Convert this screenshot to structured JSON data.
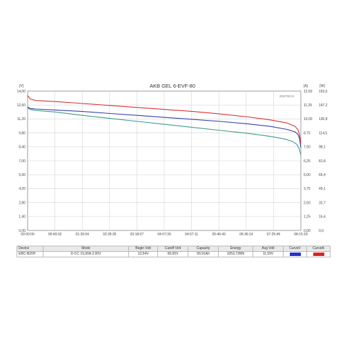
{
  "chart_data": {
    "type": "line",
    "title": "AKB GEL 6-EVF-80",
    "brand": "ZKETECH",
    "y_left_unit": "[V]",
    "y_right_unit": "[A]",
    "y_right2_unit": "[W]",
    "x_ticks": [
      "00:00:00",
      "00:49:32",
      "01:39:04",
      "02:28:35",
      "03:18:07",
      "04:07:39",
      "04:57:11",
      "05:46:43",
      "06:36:14",
      "07:25:46",
      "08:15:18"
    ],
    "y_left_ticks": [
      "0,00",
      "1,40",
      "2,80",
      "4,20",
      "5,60",
      "7,00",
      "8,40",
      "9,80",
      "11,20",
      "12,60",
      "14,00"
    ],
    "y_right_ticks": [
      "0,00",
      "1,25",
      "2,50",
      "3,75",
      "5,00",
      "6,25",
      "7,50",
      "8,75",
      "10,00",
      "11,25",
      "12,50"
    ],
    "y_right2_ticks": [
      "0,0",
      "16,4",
      "32,7",
      "49,1",
      "65,4",
      "81,8",
      "98,1",
      "114,5",
      "130,8",
      "147,2",
      "163,5"
    ],
    "x_range_minutes": [
      0,
      495.3
    ],
    "ylim": [
      0,
      14
    ],
    "grid": true,
    "series": [
      {
        "color": "#d62f2f",
        "x": [
          0,
          5,
          15,
          50,
          100,
          150,
          200,
          250,
          300,
          350,
          400,
          440,
          470,
          485,
          490,
          493,
          495.3
        ],
        "y": [
          13.54,
          13.2,
          13.05,
          12.95,
          12.75,
          12.55,
          12.35,
          12.15,
          11.95,
          11.7,
          11.4,
          11.1,
          10.8,
          10.45,
          10.1,
          9.6,
          8.7
        ]
      },
      {
        "color": "#2f3fae",
        "x": [
          0,
          5,
          15,
          50,
          100,
          150,
          200,
          250,
          300,
          350,
          400,
          440,
          470,
          485,
          490,
          493,
          495.3
        ],
        "y": [
          12.4,
          12.25,
          12.2,
          12.1,
          11.95,
          11.75,
          11.55,
          11.35,
          11.15,
          10.95,
          10.7,
          10.45,
          10.15,
          9.9,
          9.65,
          9.2,
          8.3
        ]
      },
      {
        "color": "#3a9a8a",
        "x": [
          0,
          5,
          15,
          50,
          100,
          150,
          200,
          250,
          300,
          350,
          400,
          440,
          465,
          480,
          488,
          492,
          495.3
        ],
        "y": [
          12.3,
          12.15,
          12.05,
          11.9,
          11.55,
          11.25,
          10.95,
          10.65,
          10.35,
          10.05,
          9.75,
          9.45,
          9.2,
          8.95,
          8.65,
          8.25,
          7.6
        ]
      }
    ]
  },
  "info_table": {
    "headers": [
      "Device",
      "Mode",
      "Begin Volt",
      "Cutoff Volt",
      "Capacity",
      "Energy",
      "Avg Volt",
      "CurveV",
      "CurveA"
    ],
    "row": [
      "EBC-B20H",
      "D-CC 15,00A  2,00V",
      "13,54V",
      "00,00V",
      "90,91Ah",
      "1053,73Wh",
      "11,59V"
    ],
    "curve_v_color": "#2233cc",
    "curve_a_color": "#dd2222"
  }
}
